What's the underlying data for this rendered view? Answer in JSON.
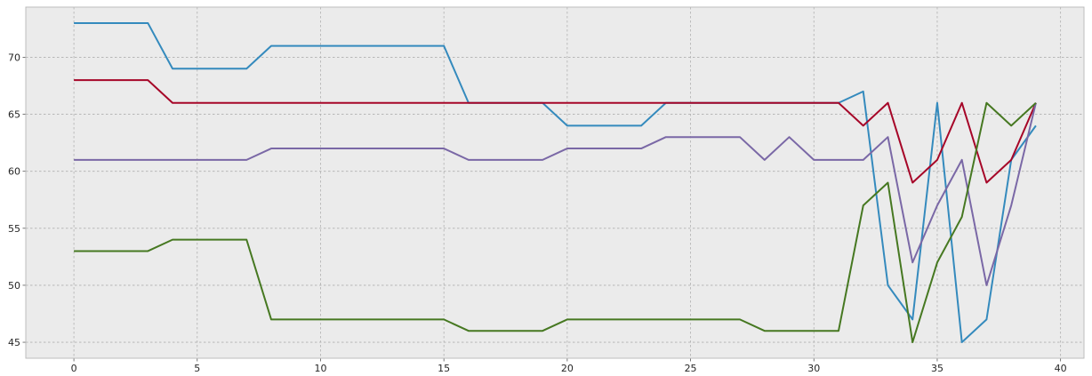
{
  "chart_data": {
    "type": "line",
    "title": "",
    "xlabel": "",
    "ylabel": "",
    "xlim": [
      -1.95,
      40.95
    ],
    "ylim": [
      43.6,
      74.4
    ],
    "x_ticks": [
      0,
      5,
      10,
      15,
      20,
      25,
      30,
      35,
      40
    ],
    "y_ticks": [
      45,
      50,
      55,
      60,
      65,
      70
    ],
    "grid": true,
    "legend": "none",
    "style": {
      "plot_background": "#ebebeb",
      "frame_color": "#bcbcbc",
      "grid_color": "#b0b0b0"
    },
    "x": [
      0,
      1,
      2,
      3,
      4,
      5,
      6,
      7,
      8,
      9,
      10,
      11,
      12,
      13,
      14,
      15,
      16,
      17,
      18,
      19,
      20,
      21,
      22,
      23,
      24,
      25,
      26,
      27,
      28,
      29,
      30,
      31,
      32,
      33,
      34,
      35,
      36,
      37,
      38,
      39
    ],
    "series": [
      {
        "color": "#348abd",
        "values": [
          73,
          73,
          73,
          73,
          69,
          69,
          69,
          69,
          71,
          71,
          71,
          71,
          71,
          71,
          71,
          71,
          66,
          66,
          66,
          66,
          64,
          64,
          64,
          64,
          66,
          66,
          66,
          66,
          66,
          66,
          66,
          66,
          67,
          50,
          47,
          66,
          45,
          47,
          61,
          64
        ]
      },
      {
        "color": "#a60628",
        "values": [
          68,
          68,
          68,
          68,
          66,
          66,
          66,
          66,
          66,
          66,
          66,
          66,
          66,
          66,
          66,
          66,
          66,
          66,
          66,
          66,
          66,
          66,
          66,
          66,
          66,
          66,
          66,
          66,
          66,
          66,
          66,
          66,
          64,
          66,
          59,
          61,
          66,
          59,
          61,
          66
        ]
      },
      {
        "color": "#7a68a6",
        "values": [
          61,
          61,
          61,
          61,
          61,
          61,
          61,
          61,
          62,
          62,
          62,
          62,
          62,
          62,
          62,
          62,
          61,
          61,
          61,
          61,
          62,
          62,
          62,
          62,
          63,
          63,
          63,
          63,
          61,
          63,
          61,
          61,
          61,
          63,
          52,
          57,
          61,
          50,
          57,
          66
        ]
      },
      {
        "color": "#467821",
        "values": [
          53,
          53,
          53,
          53,
          54,
          54,
          54,
          54,
          47,
          47,
          47,
          47,
          47,
          47,
          47,
          47,
          46,
          46,
          46,
          46,
          47,
          47,
          47,
          47,
          47,
          47,
          47,
          47,
          46,
          46,
          46,
          46,
          57,
          59,
          45,
          52,
          56,
          66,
          64,
          66
        ]
      }
    ]
  }
}
